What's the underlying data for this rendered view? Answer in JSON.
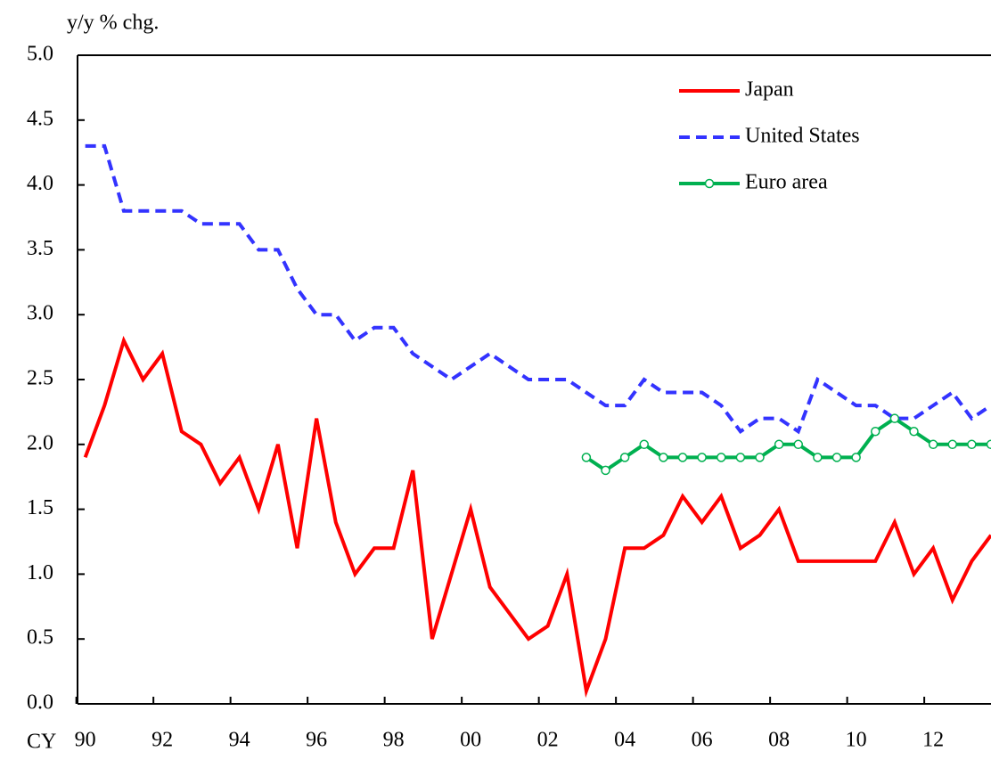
{
  "chart_data": {
    "type": "line",
    "ylabel": "y/y % chg.",
    "xlabel": "CY",
    "x": [
      1990,
      1990.5,
      1991,
      1991.5,
      1992,
      1992.5,
      1993,
      1993.5,
      1994,
      1994.5,
      1995,
      1995.5,
      1996,
      1996.5,
      1997,
      1997.5,
      1998,
      1998.5,
      1999,
      1999.5,
      2000,
      2000.5,
      2001,
      2001.5,
      2002,
      2002.5,
      2003,
      2003.5,
      2004,
      2004.5,
      2005,
      2005.5,
      2006,
      2006.5,
      2007,
      2007.5,
      2008,
      2008.5,
      2009,
      2009.5,
      2010,
      2010.5,
      2011,
      2011.5,
      2012,
      2012.5,
      2013,
      2013.5
    ],
    "series": [
      {
        "name": "Japan",
        "color": "#ff0000",
        "style": "solid",
        "values": [
          1.9,
          2.3,
          2.8,
          2.5,
          2.7,
          2.1,
          2.0,
          1.7,
          1.9,
          1.5,
          2.0,
          1.2,
          2.2,
          1.4,
          1.0,
          1.2,
          1.2,
          1.8,
          0.5,
          1.0,
          1.5,
          0.9,
          0.7,
          0.5,
          0.6,
          1.0,
          0.1,
          0.5,
          1.2,
          1.2,
          1.3,
          1.6,
          1.4,
          1.6,
          1.2,
          1.3,
          1.5,
          1.1,
          1.1,
          1.1,
          1.1,
          1.1,
          1.4,
          1.0,
          1.2,
          0.8,
          1.1,
          1.3
        ]
      },
      {
        "name": "United States",
        "color": "#3333ff",
        "style": "dashed",
        "values": [
          4.3,
          4.3,
          3.8,
          3.8,
          3.8,
          3.8,
          3.7,
          3.7,
          3.7,
          3.5,
          3.5,
          3.2,
          3.0,
          3.0,
          2.8,
          2.9,
          2.9,
          2.7,
          2.6,
          2.5,
          2.6,
          2.7,
          2.6,
          2.5,
          2.5,
          2.5,
          2.4,
          2.3,
          2.3,
          2.5,
          2.4,
          2.4,
          2.4,
          2.3,
          2.1,
          2.2,
          2.2,
          2.1,
          2.5,
          2.4,
          2.3,
          2.3,
          2.2,
          2.2,
          2.3,
          2.4,
          2.2,
          2.3
        ]
      },
      {
        "name": "Euro area",
        "color": "#00b050",
        "style": "marker",
        "values": [
          null,
          null,
          null,
          null,
          null,
          null,
          null,
          null,
          null,
          null,
          null,
          null,
          null,
          null,
          null,
          null,
          null,
          null,
          null,
          null,
          null,
          null,
          null,
          null,
          null,
          null,
          1.9,
          1.8,
          1.9,
          2.0,
          1.9,
          1.9,
          1.9,
          1.9,
          1.9,
          1.9,
          2.0,
          2.0,
          1.9,
          1.9,
          1.9,
          2.1,
          2.2,
          2.1,
          2.0,
          2.0,
          2.0,
          2.0
        ]
      }
    ],
    "xlim": [
      1989.8,
      2013.5
    ],
    "xticks": [
      {
        "value": 1990,
        "label": "90"
      },
      {
        "value": 1992,
        "label": "92"
      },
      {
        "value": 1994,
        "label": "94"
      },
      {
        "value": 1996,
        "label": "96"
      },
      {
        "value": 1998,
        "label": "98"
      },
      {
        "value": 2000,
        "label": "00"
      },
      {
        "value": 2002,
        "label": "02"
      },
      {
        "value": 2004,
        "label": "04"
      },
      {
        "value": 2006,
        "label": "06"
      },
      {
        "value": 2008,
        "label": "08"
      },
      {
        "value": 2010,
        "label": "10"
      },
      {
        "value": 2012,
        "label": "12"
      }
    ],
    "ylim": [
      0,
      5
    ],
    "yticks": [
      {
        "value": 0,
        "label": "0.0"
      },
      {
        "value": 0.5,
        "label": "0.5"
      },
      {
        "value": 1,
        "label": "1.0"
      },
      {
        "value": 1.5,
        "label": "1.5"
      },
      {
        "value": 2,
        "label": "2.0"
      },
      {
        "value": 2.5,
        "label": "2.5"
      },
      {
        "value": 3,
        "label": "3.0"
      },
      {
        "value": 3.5,
        "label": "3.5"
      },
      {
        "value": 4,
        "label": "4.0"
      },
      {
        "value": 4.5,
        "label": "4.5"
      },
      {
        "value": 5,
        "label": "5.0"
      }
    ],
    "legend": "top-right"
  }
}
